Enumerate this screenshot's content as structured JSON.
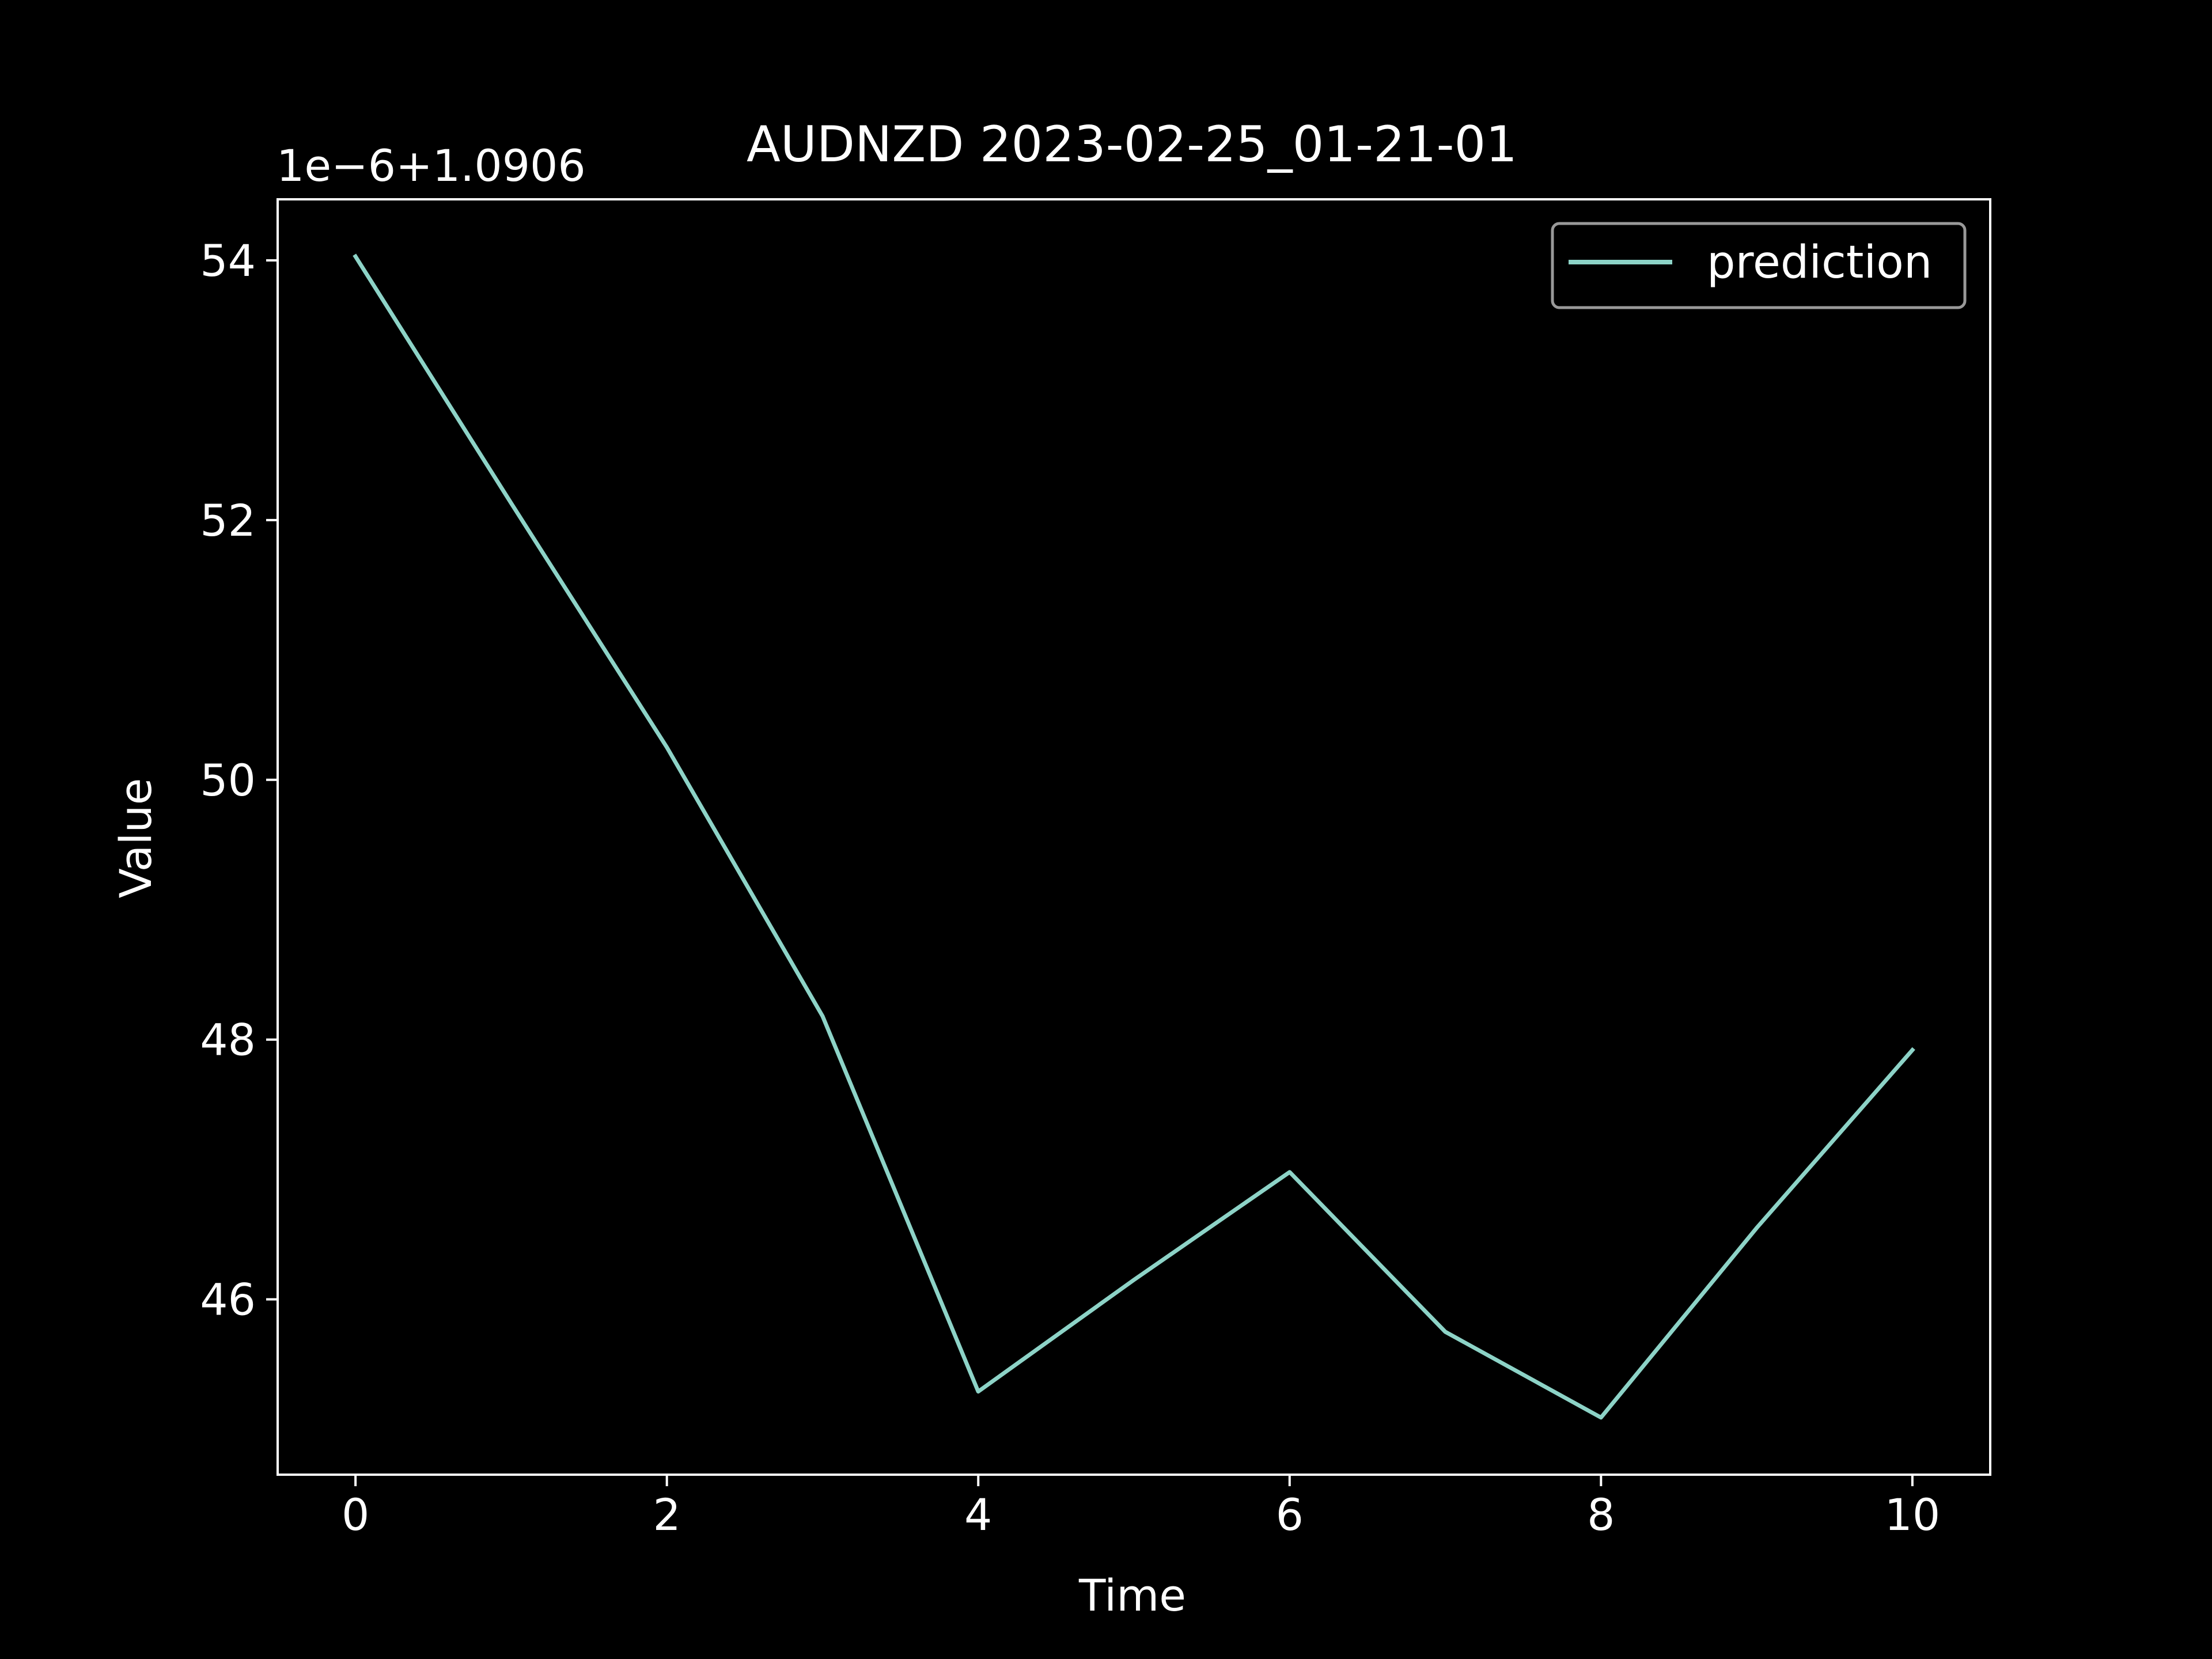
{
  "chart_data": {
    "type": "line",
    "title": "AUDNZD 2023-02-25_01-21-01",
    "xlabel": "Time",
    "ylabel": "Value",
    "offset_label": "1e−6+1.0906",
    "x": [
      0,
      1,
      2,
      3,
      4,
      5,
      6,
      7,
      8,
      9,
      10
    ],
    "series": [
      {
        "name": "prediction",
        "color": "#8dd3c7",
        "values": [
          54.03,
          52.13,
          50.25,
          48.18,
          45.29,
          46.15,
          46.98,
          45.75,
          45.09,
          46.55,
          47.92
        ]
      }
    ],
    "xlim": [
      -0.5,
      10.5
    ],
    "ylim": [
      44.65,
      54.47
    ],
    "xticks": [
      0,
      2,
      4,
      6,
      8,
      10
    ],
    "xtick_labels": [
      "0",
      "2",
      "4",
      "6",
      "8",
      "10"
    ],
    "yticks": [
      46,
      48,
      50,
      52,
      54
    ],
    "ytick_labels": [
      "46",
      "48",
      "50",
      "52",
      "54"
    ],
    "grid": false,
    "legend_position": "top-right",
    "background_color": "#000000",
    "foreground_color": "#ffffff"
  }
}
